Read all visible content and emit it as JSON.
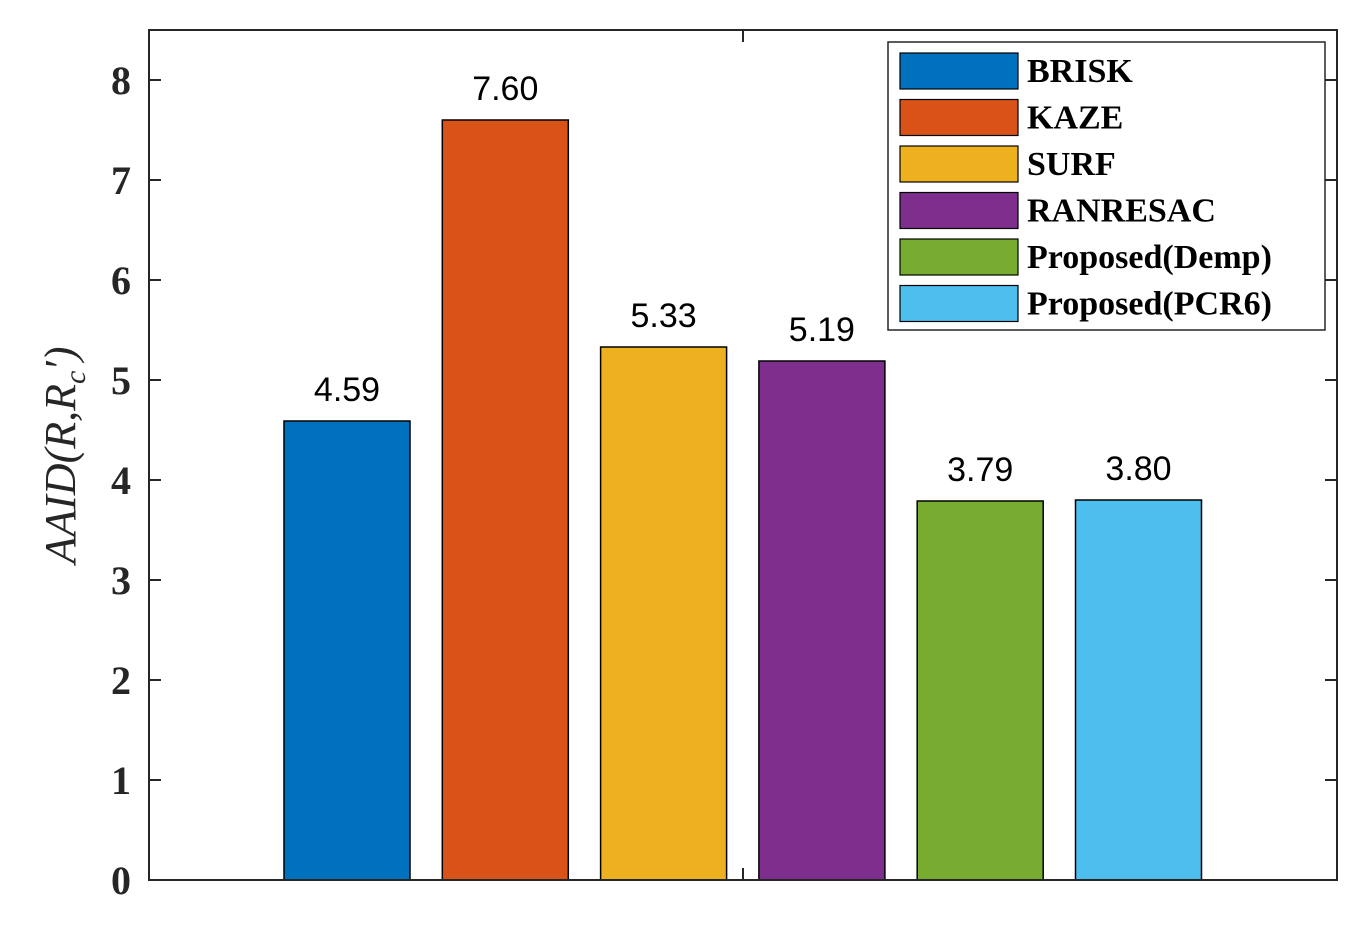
{
  "chart_data": {
    "type": "bar",
    "title": "",
    "xlabel": "",
    "ylabel_parts": {
      "main": "AAID(R,R",
      "sub": "c",
      "tail": "′)"
    },
    "ylim": [
      0,
      8.5
    ],
    "yticks": [
      0,
      1,
      2,
      3,
      4,
      5,
      6,
      7,
      8
    ],
    "ytick_labels": [
      "0",
      "1",
      "2",
      "3",
      "4",
      "5",
      "6",
      "7",
      "8"
    ],
    "legend_position": "top-right",
    "series": [
      {
        "name": "BRISK",
        "value": 4.59,
        "label": "4.59",
        "color": "#0072BD"
      },
      {
        "name": "KAZE",
        "value": 7.6,
        "label": "7.60",
        "color": "#D95319"
      },
      {
        "name": "SURF",
        "value": 5.33,
        "label": "5.33",
        "color": "#EDB120"
      },
      {
        "name": "RANRESAC",
        "value": 5.19,
        "label": "5.19",
        "color": "#7E2F8E"
      },
      {
        "name": "Proposed(Demp)",
        "value": 3.79,
        "label": "3.79",
        "color": "#77AC30"
      },
      {
        "name": "Proposed(PCR6)",
        "value": 3.8,
        "label": "3.80",
        "color": "#4DBEEE"
      }
    ]
  }
}
